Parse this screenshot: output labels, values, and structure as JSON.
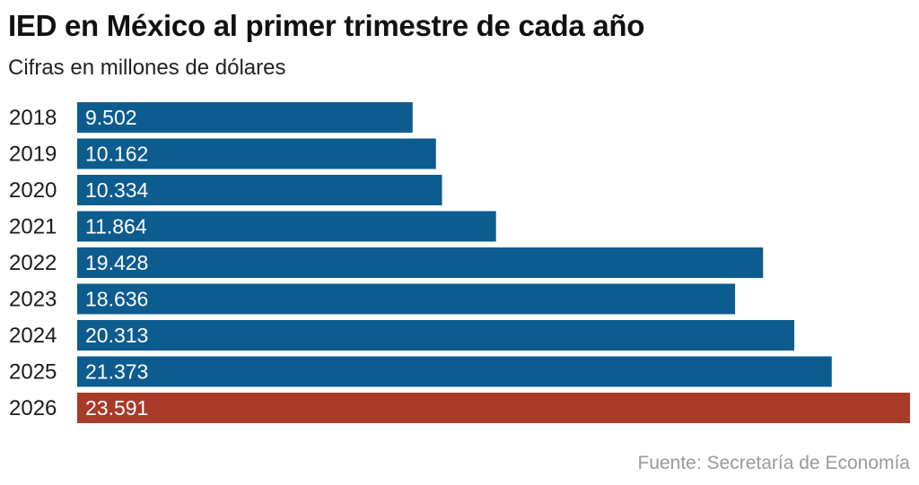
{
  "chart_data": {
    "type": "bar",
    "orientation": "horizontal",
    "title": "IED en México al primer trimestre de cada año",
    "subtitle": "Cifras en millones de dólares",
    "source": "Fuente: Secretaría de Economía",
    "categories": [
      "2018",
      "2019",
      "2020",
      "2021",
      "2022",
      "2023",
      "2024",
      "2025",
      "2026"
    ],
    "values": [
      9502,
      10162,
      10334,
      11864,
      19428,
      18636,
      20313,
      21373,
      23591
    ],
    "value_labels": [
      "9.502",
      "10.162",
      "10.334",
      "11.864",
      "19.428",
      "18.636",
      "20.313",
      "21.373",
      "23.591"
    ],
    "xlim": [
      0,
      23591
    ],
    "grid": false,
    "colors": {
      "default": "#0d5c8f",
      "highlight": "#a93a29",
      "highlight_category": "2026"
    }
  }
}
